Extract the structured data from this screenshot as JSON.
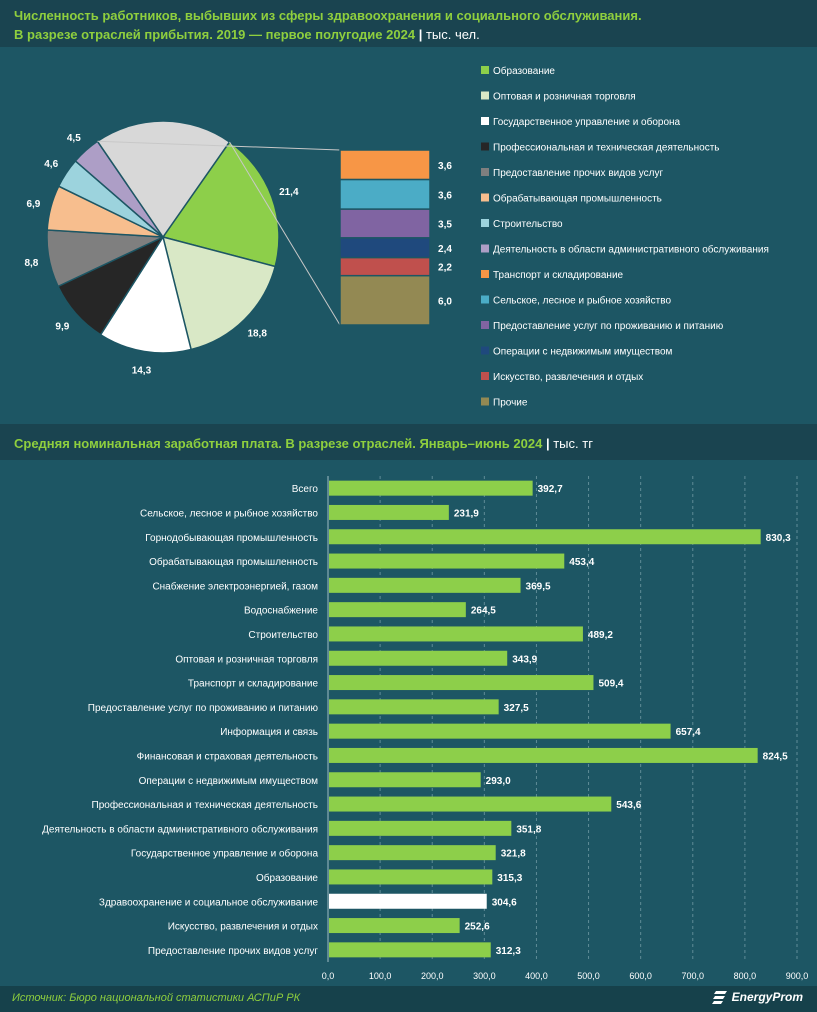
{
  "pie_section": {
    "title_line1": "Численность работников, выбывших из сферы здравоохранения и социального обслуживания.",
    "title_line2": "В разрезе отраслей прибытия. 2019 — первое полугодие 2024",
    "unit": "тыс. чел."
  },
  "bar_section": {
    "title": "Средняя номинальная заработная плата. В разрезе отраслей. Январь–июнь 2024",
    "unit": "тыс. тг"
  },
  "footer": {
    "source": "Источник: Бюро национальной статистики АСПиР РК",
    "brand": "EnergyProm"
  },
  "colors": {
    "green": "#8dcf4a",
    "highlight": "#ffffff"
  },
  "chart_data": [
    {
      "type": "pie",
      "slices": [
        {
          "label": "Образование",
          "value": 21.4,
          "color": "#8dcf4a"
        },
        {
          "label": "Оптовая и розничная торговля",
          "value": 18.8,
          "color": "#d9e8c6"
        },
        {
          "label": "Государственное управление и оборона",
          "value": 14.3,
          "color": "#ffffff"
        },
        {
          "label": "Профессиональная и техническая деятельность",
          "value": 9.9,
          "color": "#262626"
        },
        {
          "label": "Предоставление прочих видов услуг",
          "value": 8.8,
          "color": "#7f7f7f"
        },
        {
          "label": "Обрабатывающая промышленность",
          "value": 6.9,
          "color": "#f7be8e"
        },
        {
          "label": "Строительство",
          "value": 4.6,
          "color": "#9cd3dd"
        },
        {
          "label": "Деятельность в области административного обслуживания",
          "value": 4.5,
          "color": "#ad9ec6"
        },
        {
          "label": "Прочие",
          "value": 21.3,
          "color": "#d8d8d8",
          "breakout": true
        }
      ],
      "breakout": [
        {
          "label": "Транспорт и складирование",
          "value": 3.6,
          "color": "#f79646"
        },
        {
          "label": "Сельское, лесное и рыбное хозяйство",
          "value": 3.6,
          "color": "#4bacc6"
        },
        {
          "label": "Предоставление услуг по проживанию и питанию",
          "value": 3.5,
          "color": "#8064a2"
        },
        {
          "label": "Операции с недвижимым имуществом",
          "value": 2.4,
          "color": "#1f497d"
        },
        {
          "label": "Искусство, развлечения и отдых",
          "value": 2.2,
          "color": "#c0504d"
        },
        {
          "label": "Прочие",
          "value": 6.0,
          "color": "#938953"
        }
      ],
      "legend": [
        {
          "label": "Образование",
          "color": "#8dcf4a"
        },
        {
          "label": "Оптовая и розничная торговля",
          "color": "#d9e8c6"
        },
        {
          "label": "Государственное управление и оборона",
          "color": "#ffffff"
        },
        {
          "label": "Профессиональная и техническая деятельность",
          "color": "#262626"
        },
        {
          "label": "Предоставление прочих видов услуг",
          "color": "#7f7f7f"
        },
        {
          "label": "Обрабатывающая промышленность",
          "color": "#f7be8e"
        },
        {
          "label": "Строительство",
          "color": "#9cd3dd"
        },
        {
          "label": "Деятельность в области административного обслуживания",
          "color": "#ad9ec6"
        },
        {
          "label": "Транспорт и складирование",
          "color": "#f79646"
        },
        {
          "label": "Сельское, лесное и рыбное хозяйство",
          "color": "#4bacc6"
        },
        {
          "label": "Предоставление услуг по проживанию и питанию",
          "color": "#8064a2"
        },
        {
          "label": "Операции с недвижимым имуществом",
          "color": "#1f497d"
        },
        {
          "label": "Искусство, развлечения и отдых",
          "color": "#c0504d"
        },
        {
          "label": "Прочие",
          "color": "#938953"
        }
      ],
      "legend_placement": "right"
    },
    {
      "type": "bar",
      "orientation": "horizontal",
      "categories": [
        "Всего",
        "Сельское, лесное и рыбное хозяйство",
        "Горнодобывающая промышленность",
        "Обрабатывающая промышленность",
        "Снабжение электроэнергией, газом",
        "Водоснабжение",
        "Строительство",
        "Оптовая и розничная торговля",
        "Транспорт и складирование",
        "Предоставление услуг по проживанию и питанию",
        "Информация и связь",
        "Финансовая и страховая деятельность",
        "Операции с недвижимым имуществом",
        "Профессиональная и техническая деятельность",
        "Деятельность в области административного обслуживания",
        "Государственное управление и оборона",
        "Образование",
        "Здравоохранение и социальное обслуживание",
        "Искусство, развлечения и отдых",
        "Предоставление прочих видов услуг"
      ],
      "values": [
        392.7,
        231.9,
        830.3,
        453.4,
        369.5,
        264.5,
        489.2,
        343.9,
        509.4,
        327.5,
        657.4,
        824.5,
        293.0,
        543.6,
        351.8,
        321.8,
        315.3,
        304.6,
        252.6,
        312.3
      ],
      "value_labels": [
        "392,7",
        "231,9",
        "830,3",
        "453,4",
        "369,5",
        "264,5",
        "489,2",
        "343,9",
        "509,4",
        "327,5",
        "657,4",
        "824,5",
        "293,0",
        "543,6",
        "351,8",
        "321,8",
        "315,3",
        "304,6",
        "252,6",
        "312,3"
      ],
      "highlight": "Здравоохранение и социальное обслуживание",
      "xlim": [
        0,
        900
      ],
      "ticks": [
        0,
        100,
        200,
        300,
        400,
        500,
        600,
        700,
        800,
        900
      ],
      "tick_labels": [
        "0,0",
        "100,0",
        "200,0",
        "300,0",
        "400,0",
        "500,0",
        "600,0",
        "700,0",
        "800,0",
        "900,0"
      ],
      "grid": true
    }
  ]
}
